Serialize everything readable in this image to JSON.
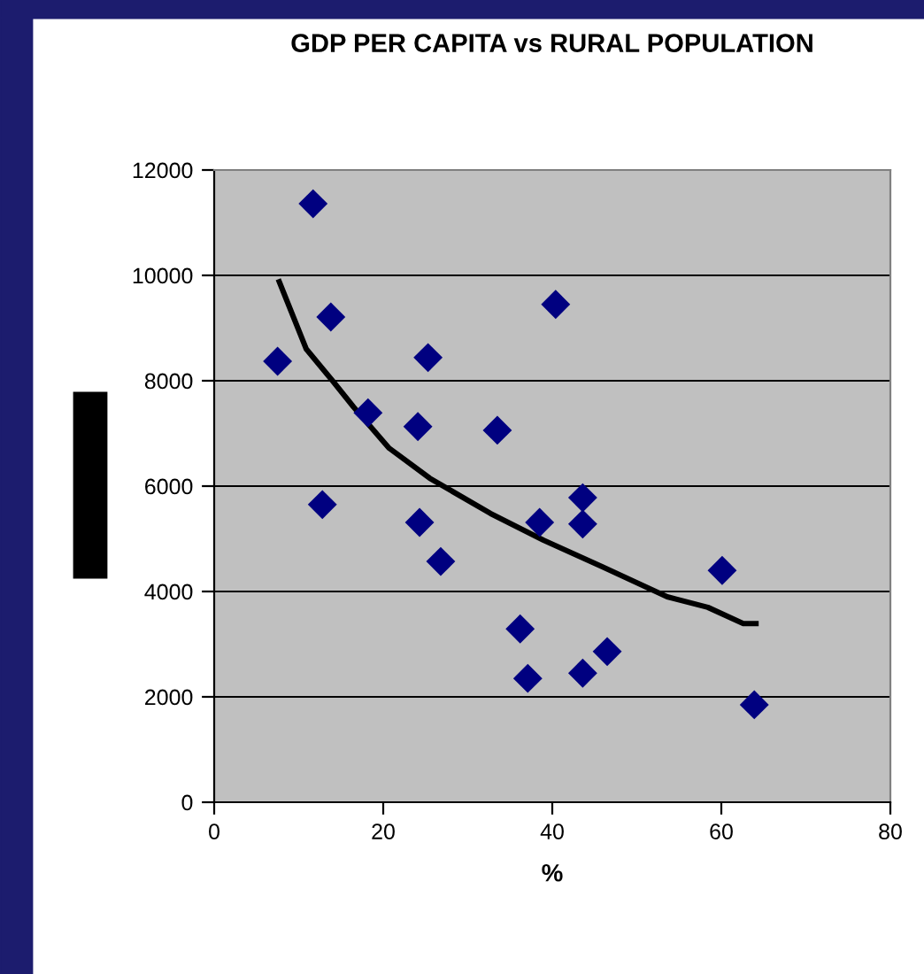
{
  "chart_data": {
    "type": "scatter",
    "title": "GDP PER CAPITA vs RURAL POPULATION",
    "xlabel": "%",
    "xlim": [
      0,
      80
    ],
    "xticks": [
      0,
      20,
      40,
      60,
      80
    ],
    "ylim": [
      0,
      12000
    ],
    "yticks": [
      0,
      2000,
      4000,
      6000,
      8000,
      10000,
      12000
    ],
    "grid": "y",
    "legend": false,
    "marker": "diamond",
    "series": [
      {
        "color": "#000080",
        "x": [
          7.5,
          11.7,
          13.8,
          12.8,
          18.2,
          24.1,
          25.3,
          24.3,
          26.8,
          33.5,
          40.4,
          38.5,
          36.2,
          37.1,
          43.6,
          43.6,
          43.6,
          46.5,
          60.1,
          63.9
        ],
        "values": [
          8370,
          11360,
          9210,
          5650,
          7390,
          7130,
          8440,
          5310,
          4570,
          7060,
          9450,
          5310,
          3290,
          2350,
          5780,
          5280,
          2450,
          2860,
          4400,
          1850
        ]
      },
      {
        "type": "line",
        "color": "#000000",
        "marker": "none",
        "x": [
          7.7,
          10.9,
          14,
          16.5,
          20.7,
          25.5,
          32.7,
          39,
          45.9,
          53.6,
          58.4,
          62.6,
          64.1
        ],
        "values": [
          9880,
          8600,
          8000,
          7500,
          6720,
          6150,
          5480,
          4970,
          4470,
          3900,
          3700,
          3390,
          3390
        ]
      }
    ]
  }
}
